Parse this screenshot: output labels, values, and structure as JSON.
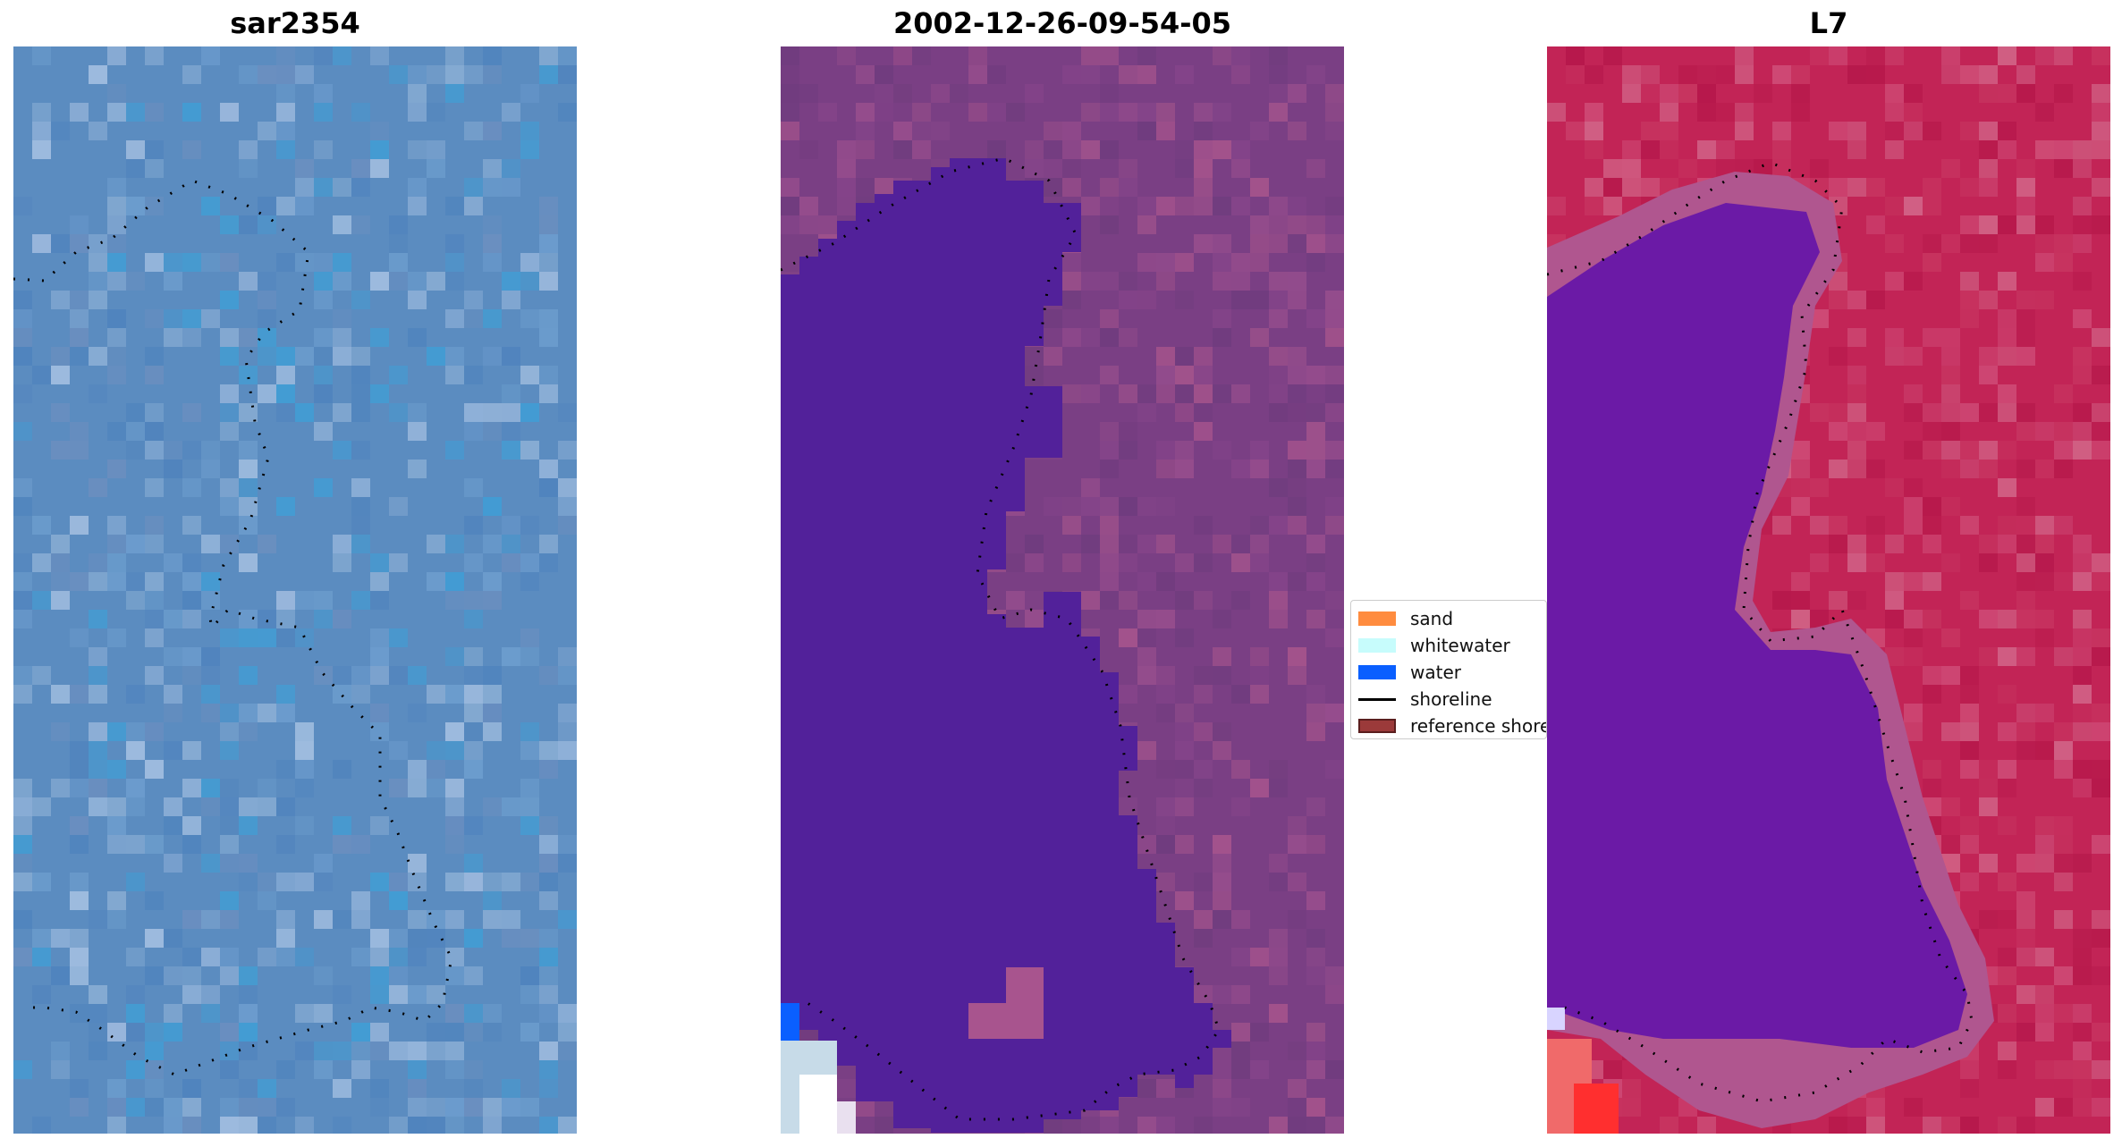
{
  "panels": [
    {
      "title": "sar2354"
    },
    {
      "title": "2002-12-26-09-54-05"
    },
    {
      "title": "L7"
    }
  ],
  "legend": {
    "items": [
      {
        "label": "sand",
        "color": "#ff8c3f",
        "kind": "patch"
      },
      {
        "label": "whitewater",
        "color": "#c7fcfc",
        "kind": "patch"
      },
      {
        "label": "water",
        "color": "#0a5fff",
        "kind": "patch"
      },
      {
        "label": "shoreline",
        "color": "#000000",
        "kind": "line"
      },
      {
        "label": "reference shoreline",
        "color": "#9b3a3a",
        "kind": "patch"
      }
    ]
  },
  "colors": {
    "rgb_base": "#5b8cc0",
    "classified_background": "#7a3f84",
    "classified_water": "#52219a",
    "false_color_background": "#c22456",
    "false_color_water": "#6b1aa6"
  }
}
